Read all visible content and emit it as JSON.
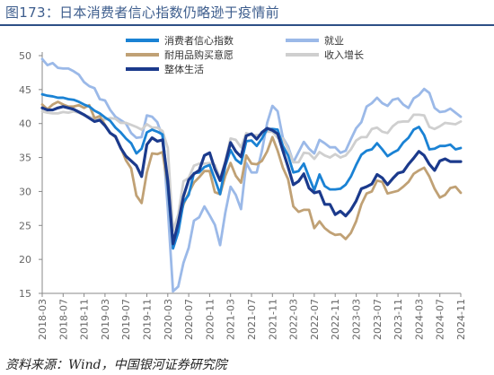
{
  "title": "图173：日本消费者信心指数仍略逊于疫情前",
  "source": "资料来源：Wind，中国银河证券研究院",
  "colors": {
    "title": "#3d5d8d",
    "rule": "#2d4f86"
  },
  "chart_data": {
    "type": "line",
    "title": "",
    "xlabel": "",
    "ylabel": "",
    "ylim": [
      15,
      50
    ],
    "yticks": [
      15,
      20,
      25,
      30,
      35,
      40,
      45,
      50
    ],
    "grid": false,
    "legend_position": "top-center",
    "x_tick_labels": [
      "2018-03",
      "2018-07",
      "2018-11",
      "2019-03",
      "2019-07",
      "2019-11",
      "2020-03",
      "2020-07",
      "2020-11",
      "2021-03",
      "2021-07",
      "2021-11",
      "2022-03",
      "2022-07",
      "2022-11",
      "2023-03",
      "2023-07",
      "2023-11",
      "2024-03",
      "2024-07",
      "2024-11"
    ],
    "x": [
      "2018-03",
      "2018-04",
      "2018-05",
      "2018-06",
      "2018-07",
      "2018-08",
      "2018-09",
      "2018-10",
      "2018-11",
      "2018-12",
      "2019-01",
      "2019-02",
      "2019-03",
      "2019-04",
      "2019-05",
      "2019-06",
      "2019-07",
      "2019-08",
      "2019-09",
      "2019-10",
      "2019-11",
      "2019-12",
      "2020-01",
      "2020-02",
      "2020-03",
      "2020-04",
      "2020-05",
      "2020-06",
      "2020-07",
      "2020-08",
      "2020-09",
      "2020-10",
      "2020-11",
      "2020-12",
      "2021-01",
      "2021-02",
      "2021-03",
      "2021-04",
      "2021-05",
      "2021-06",
      "2021-07",
      "2021-08",
      "2021-09",
      "2021-10",
      "2021-11",
      "2021-12",
      "2022-01",
      "2022-02",
      "2022-03",
      "2022-04",
      "2022-05",
      "2022-06",
      "2022-07",
      "2022-08",
      "2022-09",
      "2022-10",
      "2022-11",
      "2022-12",
      "2023-01",
      "2023-02",
      "2023-03",
      "2023-04",
      "2023-05",
      "2023-06",
      "2023-07",
      "2023-08",
      "2023-09",
      "2023-10",
      "2023-11",
      "2023-12",
      "2024-01",
      "2024-02",
      "2024-03",
      "2024-04",
      "2024-05",
      "2024-06",
      "2024-07",
      "2024-08",
      "2024-09",
      "2024-10",
      "2024-11"
    ],
    "series": [
      {
        "name": "消费者信心指数",
        "color": "#1a82d4",
        "width": 2.8,
        "values": [
          44.3,
          44.1,
          44.0,
          43.8,
          43.8,
          43.6,
          43.5,
          43.2,
          42.8,
          42.5,
          41.9,
          41.5,
          40.9,
          40.4,
          39.4,
          38.7,
          37.8,
          37.1,
          35.6,
          36.3,
          38.7,
          39.1,
          38.8,
          38.4,
          30.9,
          21.6,
          24.0,
          28.4,
          29.5,
          32.7,
          32.8,
          33.6,
          33.9,
          31.8,
          29.6,
          33.8,
          36.1,
          34.7,
          34.1,
          37.4,
          37.5,
          36.7,
          37.8,
          39.2,
          39.2,
          39.1,
          36.7,
          35.3,
          32.8,
          33.0,
          34.1,
          32.1,
          30.2,
          32.5,
          30.8,
          30.3,
          30.3,
          30.4,
          31.0,
          32.2,
          33.9,
          35.4,
          36.0,
          36.2,
          37.1,
          36.2,
          35.2,
          35.7,
          36.1,
          37.2,
          37.9,
          39.1,
          39.5,
          38.3,
          36.2,
          36.3,
          36.7,
          36.7,
          36.9,
          36.2,
          36.4
        ]
      },
      {
        "name": "就业",
        "color": "#9bb9e8",
        "width": 2.8,
        "values": [
          49.5,
          48.6,
          48.9,
          48.2,
          48.1,
          48.1,
          47.7,
          47.2,
          46.1,
          45.5,
          45.2,
          43.6,
          43.4,
          42.0,
          41.0,
          40.5,
          40.0,
          38.6,
          37.9,
          38.0,
          41.2,
          41.0,
          40.2,
          38.0,
          27.6,
          15.3,
          16.0,
          19.5,
          21.7,
          25.7,
          26.2,
          27.8,
          26.5,
          25.1,
          22.1,
          26.9,
          30.7,
          29.5,
          27.4,
          34.2,
          32.8,
          32.8,
          36.0,
          40.1,
          42.6,
          41.8,
          37.9,
          36.6,
          34.3,
          35.8,
          37.3,
          36.3,
          35.6,
          37.6,
          37.1,
          36.5,
          36.5,
          35.7,
          36.0,
          37.7,
          39.3,
          40.2,
          42.5,
          43.0,
          43.8,
          43.0,
          42.6,
          43.5,
          43.7,
          42.8,
          42.3,
          43.7,
          44.2,
          45.1,
          44.5,
          42.3,
          41.7,
          41.8,
          42.2,
          41.6,
          41.0
        ]
      },
      {
        "name": "耐用品购买意愿",
        "color": "#c0a175",
        "width": 2.8,
        "values": [
          42.8,
          42.1,
          42.8,
          43.2,
          42.8,
          42.5,
          42.5,
          42.7,
          42.3,
          42.7,
          40.8,
          41.1,
          39.8,
          38.6,
          38.0,
          36.5,
          34.6,
          33.4,
          29.4,
          28.3,
          32.8,
          35.6,
          35.5,
          35.8,
          30.8,
          21.7,
          25.4,
          28.1,
          29.8,
          31.3,
          32.1,
          33.0,
          33.0,
          29.9,
          29.6,
          32.3,
          34.2,
          32.3,
          31.3,
          35.3,
          34.1,
          34.0,
          34.5,
          35.9,
          38.0,
          36.0,
          33.5,
          31.8,
          27.8,
          27.0,
          27.3,
          27.3,
          24.6,
          25.6,
          24.6,
          24.0,
          23.6,
          23.7,
          23.0,
          23.9,
          25.6,
          28.1,
          29.7,
          30.0,
          31.6,
          31.4,
          29.7,
          29.9,
          30.1,
          30.7,
          31.4,
          32.6,
          33.1,
          33.5,
          32.2,
          30.4,
          29.1,
          29.5,
          30.5,
          30.7,
          29.8
        ]
      },
      {
        "name": "收入增长",
        "color": "#cfcfcf",
        "width": 2.8,
        "values": [
          41.8,
          41.6,
          41.5,
          41.5,
          41.7,
          41.6,
          41.8,
          41.6,
          41.2,
          41.0,
          40.7,
          40.6,
          40.6,
          40.8,
          40.7,
          40.1,
          40.1,
          39.8,
          39.5,
          39.1,
          39.9,
          39.4,
          39.4,
          38.9,
          36.4,
          24.2,
          26.6,
          31.5,
          32.0,
          33.8,
          34.1,
          34.1,
          34.2,
          33.9,
          31.9,
          34.5,
          37.8,
          37.6,
          36.5,
          38.6,
          38.3,
          38.3,
          38.4,
          38.8,
          38.8,
          37.9,
          37.8,
          36.2,
          34.3,
          34.3,
          35.7,
          35.6,
          34.8,
          35.8,
          35.3,
          35.0,
          35.5,
          35.0,
          35.3,
          36.2,
          37.5,
          38.0,
          38.0,
          39.2,
          39.4,
          38.8,
          38.6,
          39.6,
          40.2,
          40.3,
          40.3,
          41.3,
          41.3,
          41.2,
          39.5,
          39.2,
          39.6,
          40.1,
          40.0,
          39.9,
          40.3
        ]
      },
      {
        "name": "整体生活",
        "color": "#1b3a8c",
        "width": 3.2,
        "values": [
          42.3,
          42.0,
          42.0,
          42.3,
          42.5,
          42.3,
          42.1,
          41.7,
          41.3,
          40.8,
          40.3,
          40.5,
          39.7,
          38.6,
          38.1,
          36.4,
          35.2,
          34.5,
          33.8,
          32.2,
          36.9,
          37.9,
          37.4,
          37.6,
          31.6,
          22.3,
          25.4,
          29.3,
          31.7,
          32.6,
          33.1,
          35.3,
          35.7,
          33.3,
          31.6,
          34.2,
          37.2,
          35.9,
          35.1,
          38.2,
          38.5,
          37.7,
          38.7,
          39.3,
          39.0,
          38.5,
          36.0,
          33.6,
          31.0,
          31.5,
          32.6,
          30.5,
          29.8,
          30.0,
          28.1,
          28.1,
          26.6,
          27.1,
          26.4,
          27.3,
          28.6,
          30.4,
          30.7,
          31.1,
          32.5,
          32.0,
          31.0,
          31.9,
          32.7,
          32.9,
          34.0,
          34.9,
          35.9,
          35.3,
          34.0,
          33.1,
          34.5,
          34.8,
          34.4,
          34.4,
          34.4
        ]
      }
    ]
  }
}
